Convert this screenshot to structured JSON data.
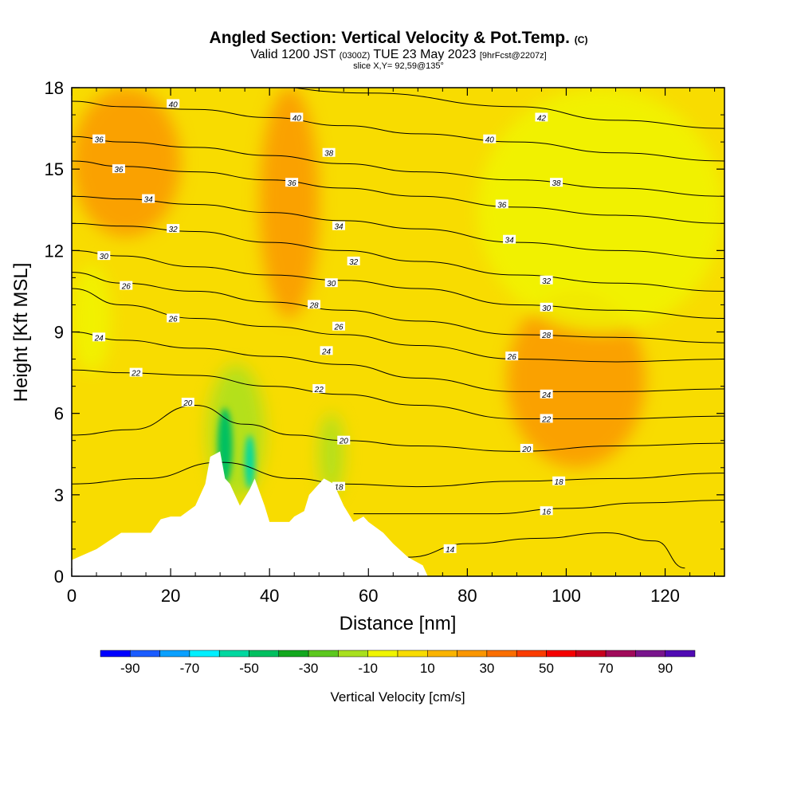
{
  "header": {
    "title_main": "Angled Section: Vertical Velocity & Pot.Temp.",
    "title_unit": "(C)",
    "valid_prefix": "Valid 1200 JST",
    "valid_z": "(0300Z)",
    "valid_date": "TUE 23 May 2023",
    "valid_fcst": "[9hrFcst@2207z]",
    "slice": "slice X,Y= 92,59@135°"
  },
  "chart_data": {
    "type": "heatmap",
    "xlabel": "Distance [nm]",
    "ylabel": "Height [Kft MSL]",
    "xlim": [
      0,
      132
    ],
    "ylim": [
      0,
      18
    ],
    "x_ticks": [
      0,
      20,
      40,
      60,
      80,
      100,
      120
    ],
    "y_ticks": [
      0,
      3,
      6,
      9,
      12,
      15,
      18
    ],
    "colorbar": {
      "label": "Vertical Velocity [cm/s]",
      "tick_values": [
        -90,
        -70,
        -50,
        -30,
        -10,
        10,
        30,
        50,
        70,
        90
      ],
      "range": [
        -100,
        100
      ],
      "colors": [
        "#0000ff",
        "#1a5cff",
        "#0aa0ff",
        "#00f0ff",
        "#00d8a0",
        "#00c060",
        "#12a81e",
        "#5cc81e",
        "#a8e01e",
        "#f0f500",
        "#f8dc00",
        "#fab400",
        "#fa9600",
        "#fa6e00",
        "#fa3c00",
        "#f50000",
        "#c8001e",
        "#a00a5a",
        "#78148c",
        "#500ab4"
      ]
    },
    "terrain_profile_kft": [
      [
        0,
        0.6
      ],
      [
        5,
        1
      ],
      [
        10,
        1.6
      ],
      [
        16,
        1.6
      ],
      [
        18,
        2.1
      ],
      [
        20,
        2.2
      ],
      [
        22,
        2.2
      ],
      [
        25,
        2.6
      ],
      [
        27,
        3.4
      ],
      [
        28,
        4.4
      ],
      [
        30,
        4.6
      ],
      [
        31,
        3.6
      ],
      [
        32,
        3.4
      ],
      [
        34,
        2.6
      ],
      [
        36,
        3.2
      ],
      [
        37,
        3.6
      ],
      [
        39,
        2.6
      ],
      [
        40,
        2
      ],
      [
        44,
        2
      ],
      [
        45,
        2.2
      ],
      [
        47,
        2.4
      ],
      [
        48,
        3
      ],
      [
        51,
        3.6
      ],
      [
        53,
        3.4
      ],
      [
        55,
        2.6
      ],
      [
        57,
        2
      ],
      [
        59,
        2.2
      ],
      [
        60,
        2
      ],
      [
        63,
        1.6
      ],
      [
        65,
        1.2
      ],
      [
        68,
        0.7
      ],
      [
        71,
        0.4
      ],
      [
        72,
        0
      ]
    ],
    "theta_contours": [
      {
        "label": "14",
        "points": [
          [
            68,
            0.7
          ],
          [
            80,
            1.2
          ],
          [
            95,
            1.4
          ],
          [
            108,
            1.6
          ],
          [
            118,
            1.3
          ],
          [
            124,
            0.3
          ]
        ]
      },
      {
        "label": "16",
        "points": [
          [
            57,
            2.3
          ],
          [
            70,
            2.3
          ],
          [
            85,
            2.3
          ],
          [
            100,
            2.5
          ],
          [
            115,
            2.7
          ],
          [
            132,
            2.8
          ]
        ]
      },
      {
        "label": "18",
        "points": [
          [
            0,
            3.4
          ],
          [
            15,
            3.6
          ],
          [
            30,
            4.2
          ],
          [
            45,
            3.6
          ],
          [
            55,
            3.4
          ],
          [
            70,
            3.3
          ],
          [
            90,
            3.5
          ],
          [
            110,
            3.6
          ],
          [
            132,
            3.8
          ]
        ]
      },
      {
        "label": "20",
        "points": [
          [
            0,
            5.2
          ],
          [
            12,
            5.4
          ],
          [
            25,
            6.3
          ],
          [
            35,
            5.6
          ],
          [
            45,
            5.2
          ],
          [
            55,
            5
          ],
          [
            70,
            4.8
          ],
          [
            90,
            4.6
          ],
          [
            110,
            4.8
          ],
          [
            132,
            4.9
          ]
        ]
      },
      {
        "label": "22",
        "points": [
          [
            0,
            7.6
          ],
          [
            10,
            7.5
          ],
          [
            25,
            7.4
          ],
          [
            40,
            7
          ],
          [
            55,
            6.7
          ],
          [
            70,
            6.3
          ],
          [
            90,
            5.8
          ],
          [
            110,
            5.8
          ],
          [
            132,
            5.9
          ]
        ]
      },
      {
        "label": "24",
        "points": [
          [
            0,
            9
          ],
          [
            10,
            8.7
          ],
          [
            25,
            8.4
          ],
          [
            40,
            8.1
          ],
          [
            55,
            7.8
          ],
          [
            70,
            7.3
          ],
          [
            90,
            6.8
          ],
          [
            110,
            6.8
          ],
          [
            132,
            6.9
          ]
        ]
      },
      {
        "label": "26",
        "points": [
          [
            0,
            10.6
          ],
          [
            10,
            10
          ],
          [
            25,
            9.5
          ],
          [
            40,
            9.2
          ],
          [
            55,
            8.9
          ],
          [
            70,
            8.5
          ],
          [
            90,
            8
          ],
          [
            110,
            7.9
          ],
          [
            132,
            8
          ]
        ]
      },
      {
        "label": "28",
        "points": [
          [
            0,
            11.2
          ],
          [
            10,
            10.8
          ],
          [
            25,
            10.5
          ],
          [
            40,
            10.1
          ],
          [
            55,
            9.8
          ],
          [
            70,
            9.4
          ],
          [
            90,
            8.9
          ],
          [
            110,
            8.8
          ],
          [
            132,
            8.6
          ]
        ]
      },
      {
        "label": "30",
        "points": [
          [
            0,
            12
          ],
          [
            10,
            11.8
          ],
          [
            25,
            11.4
          ],
          [
            40,
            11.1
          ],
          [
            55,
            10.9
          ],
          [
            70,
            10.6
          ],
          [
            90,
            10
          ],
          [
            110,
            9.8
          ],
          [
            132,
            9.5
          ]
        ]
      },
      {
        "label": "32",
        "points": [
          [
            0,
            13
          ],
          [
            10,
            12.9
          ],
          [
            25,
            12.7
          ],
          [
            40,
            12.3
          ],
          [
            55,
            12
          ],
          [
            70,
            11.6
          ],
          [
            90,
            11.1
          ],
          [
            110,
            10.8
          ],
          [
            132,
            10.5
          ]
        ]
      },
      {
        "label": "34",
        "points": [
          [
            0,
            14
          ],
          [
            10,
            13.9
          ],
          [
            25,
            13.7
          ],
          [
            40,
            13.4
          ],
          [
            55,
            13.1
          ],
          [
            70,
            12.8
          ],
          [
            90,
            12.3
          ],
          [
            110,
            12
          ],
          [
            132,
            11.7
          ]
        ]
      },
      {
        "label": "36",
        "points": [
          [
            0,
            15.3
          ],
          [
            10,
            15.1
          ],
          [
            25,
            14.9
          ],
          [
            40,
            14.6
          ],
          [
            55,
            14.3
          ],
          [
            70,
            14
          ],
          [
            90,
            13.6
          ],
          [
            110,
            13.3
          ],
          [
            132,
            13
          ]
        ]
      },
      {
        "label": "38",
        "points": [
          [
            0,
            16.2
          ],
          [
            10,
            16
          ],
          [
            25,
            15.8
          ],
          [
            40,
            15.5
          ],
          [
            55,
            15.2
          ],
          [
            70,
            14.9
          ],
          [
            90,
            14.6
          ],
          [
            110,
            14.3
          ],
          [
            132,
            14
          ]
        ]
      },
      {
        "label": "40",
        "points": [
          [
            0,
            17.5
          ],
          [
            10,
            17.3
          ],
          [
            25,
            17.2
          ],
          [
            40,
            16.9
          ],
          [
            55,
            16.6
          ],
          [
            70,
            16.3
          ],
          [
            90,
            16
          ],
          [
            110,
            15.6
          ],
          [
            132,
            15.3
          ]
        ]
      },
      {
        "label": "42",
        "points": [
          [
            0,
            18.3
          ],
          [
            30,
            18.2
          ],
          [
            60,
            17.8
          ],
          [
            90,
            17.3
          ],
          [
            110,
            16.8
          ],
          [
            132,
            16.5
          ]
        ]
      }
    ],
    "contour_labels": [
      {
        "text": "40",
        "x": 20.5,
        "y": 17.4
      },
      {
        "text": "40",
        "x": 45.5,
        "y": 16.9
      },
      {
        "text": "42",
        "x": 95,
        "y": 16.9
      },
      {
        "text": "36",
        "x": 5.5,
        "y": 16.1
      },
      {
        "text": "40",
        "x": 84.5,
        "y": 16.1
      },
      {
        "text": "38",
        "x": 52,
        "y": 15.6
      },
      {
        "text": "36",
        "x": 9.5,
        "y": 15
      },
      {
        "text": "36",
        "x": 44.5,
        "y": 14.5
      },
      {
        "text": "38",
        "x": 98,
        "y": 14.5
      },
      {
        "text": "34",
        "x": 15.5,
        "y": 13.9
      },
      {
        "text": "36",
        "x": 87,
        "y": 13.7
      },
      {
        "text": "32",
        "x": 20.5,
        "y": 12.8
      },
      {
        "text": "34",
        "x": 54,
        "y": 12.9
      },
      {
        "text": "34",
        "x": 88.5,
        "y": 12.4
      },
      {
        "text": "30",
        "x": 6.5,
        "y": 11.8
      },
      {
        "text": "32",
        "x": 57,
        "y": 11.6
      },
      {
        "text": "26",
        "x": 11,
        "y": 10.7
      },
      {
        "text": "30",
        "x": 52.5,
        "y": 10.8
      },
      {
        "text": "32",
        "x": 96,
        "y": 10.9
      },
      {
        "text": "28",
        "x": 49,
        "y": 10
      },
      {
        "text": "30",
        "x": 96,
        "y": 9.9
      },
      {
        "text": "26",
        "x": 20.5,
        "y": 9.5
      },
      {
        "text": "26",
        "x": 54,
        "y": 9.2
      },
      {
        "text": "28",
        "x": 96,
        "y": 8.9
      },
      {
        "text": "24",
        "x": 5.5,
        "y": 8.8
      },
      {
        "text": "24",
        "x": 51.5,
        "y": 8.3
      },
      {
        "text": "26",
        "x": 89,
        "y": 8.1
      },
      {
        "text": "22",
        "x": 13,
        "y": 7.5
      },
      {
        "text": "22",
        "x": 50,
        "y": 6.9
      },
      {
        "text": "24",
        "x": 96,
        "y": 6.7
      },
      {
        "text": "20",
        "x": 23.5,
        "y": 6.4
      },
      {
        "text": "22",
        "x": 96,
        "y": 5.8
      },
      {
        "text": "20",
        "x": 55,
        "y": 5
      },
      {
        "text": "20",
        "x": 92,
        "y": 4.7
      },
      {
        "text": "18",
        "x": 54,
        "y": 3.3
      },
      {
        "text": "18",
        "x": 98.5,
        "y": 3.5
      },
      {
        "text": "16",
        "x": 96,
        "y": 2.4
      },
      {
        "text": "14",
        "x": 76.5,
        "y": 1
      }
    ],
    "velocity_features": [
      {
        "value": -45,
        "x": [
          29.5,
          32.5
        ],
        "y": [
          3.4,
          6.2
        ]
      },
      {
        "value": -55,
        "x": [
          35,
          37
        ],
        "y": [
          3.2,
          5.2
        ]
      },
      {
        "value": -20,
        "x": [
          27.5,
          39
        ],
        "y": [
          2.8,
          7.8
        ]
      },
      {
        "value": -20,
        "x": [
          50,
          55
        ],
        "y": [
          3.0,
          6.0
        ]
      },
      {
        "value": 25,
        "x": [
          88,
          116
        ],
        "y": [
          4.0,
          10.5
        ]
      },
      {
        "value": 25,
        "x": [
          0,
          22
        ],
        "y": [
          12.5,
          18
        ]
      },
      {
        "value": 25,
        "x": [
          38,
          50
        ],
        "y": [
          9.5,
          18
        ]
      },
      {
        "value": -10,
        "x": [
          0,
          8
        ],
        "y": [
          7.5,
          11.5
        ]
      },
      {
        "value": -10,
        "x": [
          82,
          132
        ],
        "y": [
          9,
          18
        ]
      }
    ]
  }
}
